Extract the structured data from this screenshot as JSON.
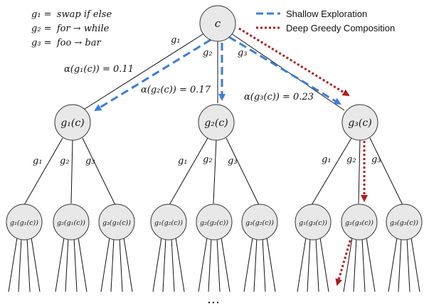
{
  "definitions": [
    {
      "lhs": "g₁ =",
      "rhs": "swap if else"
    },
    {
      "lhs": "g₂ =",
      "rhs": "for → while"
    },
    {
      "lhs": "g₃ =",
      "rhs": "foo → bar"
    }
  ],
  "legend": {
    "shallow": {
      "label": "Shallow Exploration",
      "color": "#3b7ddd"
    },
    "deep": {
      "label": "Deep Greedy Composition",
      "color": "#b01c1c"
    }
  },
  "root": {
    "label": "c"
  },
  "edge_labels": {
    "g1": "g₁",
    "g2": "g₂",
    "g3": "g₃"
  },
  "scores": [
    {
      "label": "α(g₁(c)) = 0.11"
    },
    {
      "label": "α(g₂(c)) = 0.17"
    },
    {
      "label": "α(g₃(c)) = 0.23"
    }
  ],
  "level1": [
    {
      "label": "g₁(c)"
    },
    {
      "label": "g₂(c)"
    },
    {
      "label": "g₃(c)"
    }
  ],
  "level2": [
    {
      "label": "g₁(g₁(c))"
    },
    {
      "label": "g₂(g₁(c))"
    },
    {
      "label": "g₃(g₁(c))"
    },
    {
      "label": "g₁(g₂(c))"
    },
    {
      "label": "g₂(g₂(c))"
    },
    {
      "label": "g₃(g₂(c))"
    },
    {
      "label": "g₁(g₃(c))"
    },
    {
      "label": "g₂(g₃(c))"
    },
    {
      "label": "g₃(g₃(c))"
    }
  ],
  "ellipsis": "…"
}
